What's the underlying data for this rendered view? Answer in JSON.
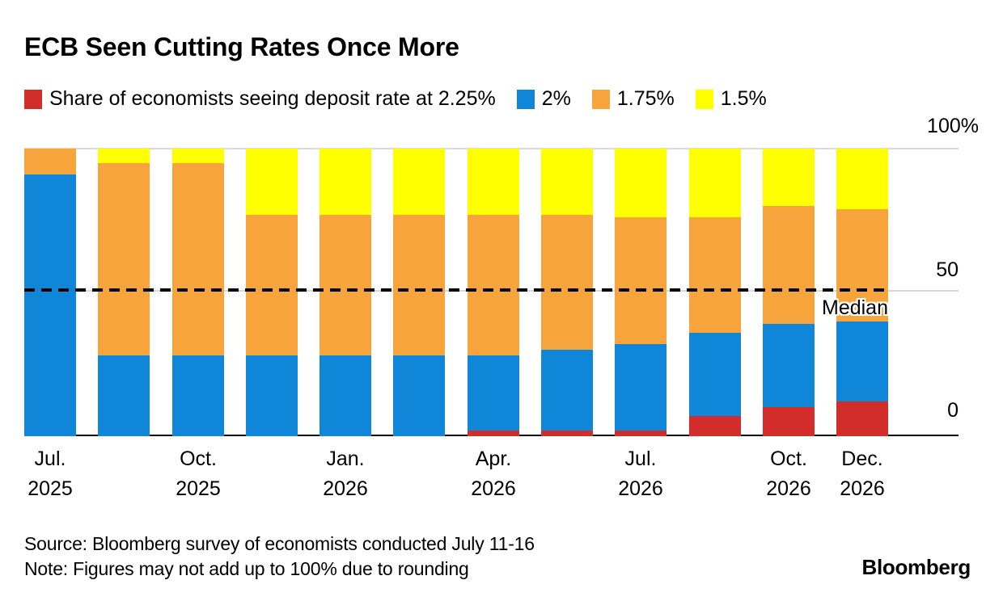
{
  "title": "ECB Seen Cutting Rates Once More",
  "chart_data": {
    "type": "bar",
    "stacked": true,
    "orientation": "vertical",
    "bars": 12,
    "ylim": [
      0,
      100
    ],
    "y_ticks": [
      "100%",
      "50",
      "0"
    ],
    "grid": "horizontal-at-50-and-100",
    "legend_position": "top",
    "median_line": {
      "value": 50,
      "style": "dashed",
      "label": "Median"
    },
    "x_tick_labels": [
      {
        "bar": 0,
        "line1": "Jul.",
        "line2": "2025"
      },
      {
        "bar": 2,
        "line1": "Oct.",
        "line2": "2025"
      },
      {
        "bar": 4,
        "line1": "Jan.",
        "line2": "2026"
      },
      {
        "bar": 6,
        "line1": "Apr.",
        "line2": "2026"
      },
      {
        "bar": 8,
        "line1": "Jul.",
        "line2": "2026"
      },
      {
        "bar": 10,
        "line1": "Oct.",
        "line2": "2026"
      },
      {
        "bar": 11,
        "line1": "Dec.",
        "line2": "2026"
      }
    ],
    "series": [
      {
        "name": "Share of economists seeing deposit rate at 2.25%",
        "color": "#d22d2a",
        "values": [
          0,
          0,
          0,
          0,
          0,
          0,
          2,
          2,
          2,
          7,
          10,
          12
        ]
      },
      {
        "name": "2%",
        "color": "#0f86d8",
        "values": [
          91,
          28,
          28,
          28,
          28,
          28,
          26,
          28,
          30,
          29,
          29,
          28
        ]
      },
      {
        "name": "1.75%",
        "color": "#f8a43c",
        "values": [
          9,
          67,
          67,
          49,
          49,
          49,
          49,
          47,
          44,
          40,
          41,
          39
        ]
      },
      {
        "name": "1.5%",
        "color": "#ffff00",
        "values": [
          0,
          5,
          5,
          23,
          23,
          23,
          23,
          23,
          24,
          24,
          20,
          21
        ]
      }
    ]
  },
  "footer": {
    "source": "Source: Bloomberg survey of economists conducted July 11-16",
    "note": "Note: Figures may not add up to 100% due to rounding",
    "brand": "Bloomberg"
  }
}
